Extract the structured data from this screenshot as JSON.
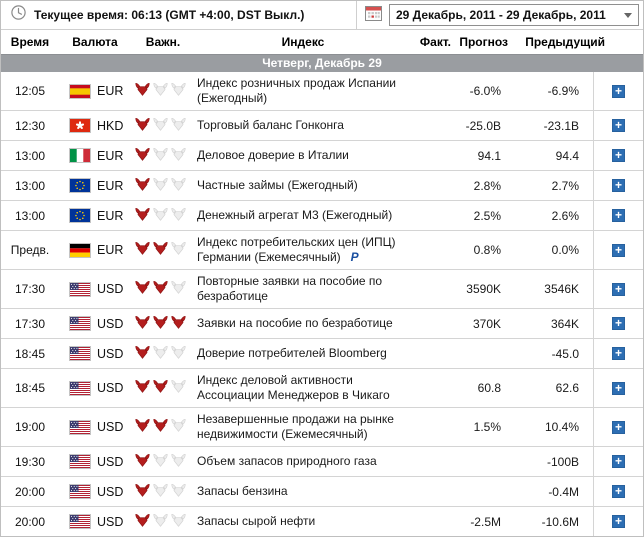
{
  "topbar": {
    "current_time_label": "Текущее время:",
    "current_time_value": "06:13 (GMT +4:00, DST Выкл.)",
    "date_range": "29 Декабрь, 2011 - 29 Декабрь, 2011"
  },
  "columns": {
    "time": "Время",
    "currency": "Валюта",
    "importance": "Важн.",
    "index": "Индекс",
    "actual": "Факт.",
    "forecast": "Прогноз",
    "previous": "Предыдущий"
  },
  "day_header": "Четверг, Декабрь 29",
  "icons": {
    "plus": "+"
  },
  "colors": {
    "accent_blue": "#2d6eb3",
    "bull_red": "#b41d1d",
    "day_bar_gray": "#9a9da1",
    "note_blue": "#1a4fa0"
  },
  "rows": [
    {
      "time": "12:05",
      "country": "es",
      "currency": "EUR",
      "importance": 1,
      "index": "Индекс розничных продаж Испании (Ежегодный)",
      "note": "",
      "actual": "",
      "forecast": "-6.0%",
      "previous": "-6.9%"
    },
    {
      "time": "12:30",
      "country": "hk",
      "currency": "HKD",
      "importance": 1,
      "index": "Торговый баланс Гонконга",
      "note": "",
      "actual": "",
      "forecast": "-25.0B",
      "previous": "-23.1B"
    },
    {
      "time": "13:00",
      "country": "it",
      "currency": "EUR",
      "importance": 1,
      "index": "Деловое доверие в Италии",
      "note": "",
      "actual": "",
      "forecast": "94.1",
      "previous": "94.4"
    },
    {
      "time": "13:00",
      "country": "eu",
      "currency": "EUR",
      "importance": 1,
      "index": "Частные займы (Ежегодный)",
      "note": "",
      "actual": "",
      "forecast": "2.8%",
      "previous": "2.7%"
    },
    {
      "time": "13:00",
      "country": "eu",
      "currency": "EUR",
      "importance": 1,
      "index": "Денежный агрегат M3 (Ежегодный)",
      "note": "",
      "actual": "",
      "forecast": "2.5%",
      "previous": "2.6%"
    },
    {
      "time": "Предв.",
      "country": "de",
      "currency": "EUR",
      "importance": 2,
      "index": "Индекс потребительских цен (ИПЦ) Германии (Ежемесячный)",
      "note": "P",
      "actual": "",
      "forecast": "0.8%",
      "previous": "0.0%"
    },
    {
      "time": "17:30",
      "country": "us",
      "currency": "USD",
      "importance": 2,
      "index": "Повторные заявки на пособие по безработице",
      "note": "",
      "actual": "",
      "forecast": "3590K",
      "previous": "3546K"
    },
    {
      "time": "17:30",
      "country": "us",
      "currency": "USD",
      "importance": 3,
      "index": "Заявки на пособие по безработице",
      "note": "",
      "actual": "",
      "forecast": "370K",
      "previous": "364K"
    },
    {
      "time": "18:45",
      "country": "us",
      "currency": "USD",
      "importance": 1,
      "index": "Доверие потребителей Bloomberg",
      "note": "",
      "actual": "",
      "forecast": "",
      "previous": "-45.0"
    },
    {
      "time": "18:45",
      "country": "us",
      "currency": "USD",
      "importance": 2,
      "index": "Индекс деловой активности Ассоциации Менеджеров в Чикаго",
      "note": "",
      "actual": "",
      "forecast": "60.8",
      "previous": "62.6"
    },
    {
      "time": "19:00",
      "country": "us",
      "currency": "USD",
      "importance": 2,
      "index": "Незавершенные продажи на рынке недвижимости (Ежемесячный)",
      "note": "",
      "actual": "",
      "forecast": "1.5%",
      "previous": "10.4%"
    },
    {
      "time": "19:30",
      "country": "us",
      "currency": "USD",
      "importance": 1,
      "index": "Объем запасов природного газа",
      "note": "",
      "actual": "",
      "forecast": "",
      "previous": "-100B"
    },
    {
      "time": "20:00",
      "country": "us",
      "currency": "USD",
      "importance": 1,
      "index": "Запасы бензина",
      "note": "",
      "actual": "",
      "forecast": "",
      "previous": "-0.4M"
    },
    {
      "time": "20:00",
      "country": "us",
      "currency": "USD",
      "importance": 1,
      "index": "Запасы сырой нефти",
      "note": "",
      "actual": "",
      "forecast": "-2.5M",
      "previous": "-10.6M"
    }
  ]
}
